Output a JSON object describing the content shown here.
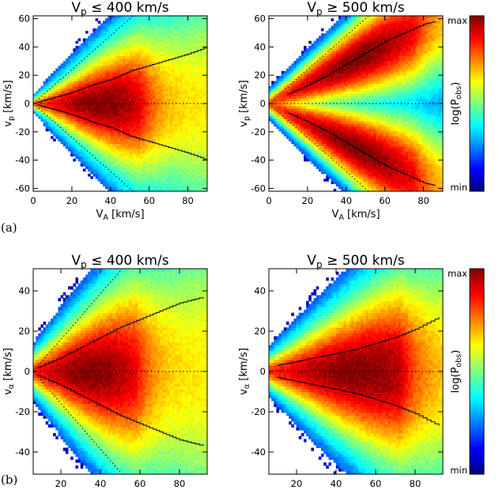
{
  "figure": {
    "rows": [
      {
        "label": "(a)"
      },
      {
        "label": "(b)"
      }
    ]
  },
  "colorbar": {
    "max_label": "max",
    "min_label": "min",
    "title": "log(P",
    "title_sub": "obs",
    "title_end": ")",
    "colors": [
      "#00007f",
      "#0000ff",
      "#0080ff",
      "#00ffff",
      "#7fff7f",
      "#ffff00",
      "#ff8000",
      "#ff0000",
      "#7f0000"
    ]
  },
  "chart_data": [
    {
      "type": "heatmap",
      "panel": "a-left",
      "title_main": "V",
      "title_sub": "p",
      "title_rest": " ≤ 400 km/s",
      "xlabel_main": "V",
      "xlabel_sub": "A",
      "xlabel_rest": " [km/s]",
      "ylabel_main": "v",
      "ylabel_sub": "p",
      "ylabel_rest": " [km/s]",
      "xlim": [
        0,
        90
      ],
      "ylim": [
        -62,
        62
      ],
      "xticks": [
        0,
        20,
        40,
        60,
        80
      ],
      "yticks": [
        -60,
        -40,
        -20,
        0,
        20,
        40,
        60
      ],
      "mode": "center",
      "spread_slope": 0.5,
      "peak_x": 35,
      "cutoff_x": 55,
      "boundary_slope": 1.2,
      "median_curve": {
        "x": [
          2,
          10,
          20,
          30,
          40,
          50,
          60,
          70,
          80,
          90
        ],
        "y": [
          1,
          4,
          8,
          13,
          17,
          23,
          27,
          31,
          35,
          40
        ]
      },
      "diagonal_slope": 1.2
    },
    {
      "type": "heatmap",
      "panel": "a-right",
      "title_main": "V",
      "title_sub": "p",
      "title_rest": " ≥ 500 km/s",
      "xlabel_main": "V",
      "xlabel_sub": "A",
      "xlabel_rest": " [km/s]",
      "ylabel_main": "v",
      "ylabel_sub": "p",
      "ylabel_rest": " [km/s]",
      "xlim": [
        0,
        90
      ],
      "ylim": [
        -62,
        62
      ],
      "xticks": [
        0,
        20,
        40,
        60,
        80
      ],
      "yticks": [
        -60,
        -40,
        -20,
        0,
        20,
        40,
        60
      ],
      "mode": "split",
      "spread_slope": 0.55,
      "peak_x": 45,
      "cutoff_x": 75,
      "boundary_slope": 1.2,
      "median_curve": {
        "x": [
          10,
          20,
          30,
          40,
          50,
          60,
          70,
          80,
          86
        ],
        "y": [
          7,
          13,
          20,
          28,
          36,
          44,
          50,
          56,
          58
        ]
      },
      "diagonal_slope": 1.2
    },
    {
      "type": "heatmap",
      "panel": "b-left",
      "title_main": "V",
      "title_sub": "p",
      "title_rest": " ≤ 400 km/s",
      "xlabel_main": "V",
      "xlabel_sub": "A",
      "xlabel_rest": " [km/s]",
      "ylabel_main": "v",
      "ylabel_sub": "α",
      "ylabel_rest": " [km/s]",
      "xlim": [
        6,
        94
      ],
      "ylim": [
        -51,
        51
      ],
      "xticks": [
        20,
        40,
        60,
        80
      ],
      "yticks": [
        -40,
        -20,
        0,
        20,
        40
      ],
      "mode": "center",
      "spread_slope": 0.45,
      "peak_x": 35,
      "cutoff_x": 58,
      "boundary_slope": 1.0,
      "median_curve": {
        "x": [
          8,
          20,
          30,
          40,
          50,
          60,
          70,
          80,
          92
        ],
        "y": [
          2,
          7,
          12,
          17,
          22,
          26,
          30,
          34,
          37
        ]
      },
      "diagonal_slope": 1.0
    },
    {
      "type": "heatmap",
      "panel": "b-right",
      "title_main": "V",
      "title_sub": "p",
      "title_rest": " ≥ 500 km/s",
      "xlabel_main": "V",
      "xlabel_sub": "A",
      "xlabel_rest": " [km/s]",
      "ylabel_main": "v",
      "ylabel_sub": "α",
      "ylabel_rest": " [km/s]",
      "xlim": [
        6,
        94
      ],
      "ylim": [
        -51,
        51
      ],
      "xticks": [
        20,
        40,
        60,
        80
      ],
      "yticks": [
        -40,
        -20,
        0,
        20,
        40
      ],
      "mode": "center",
      "spread_slope": 0.35,
      "peak_x": 50,
      "cutoff_x": 72,
      "boundary_slope": 0.8,
      "median_curve": {
        "x": [
          10,
          20,
          30,
          40,
          50,
          60,
          70,
          80,
          92
        ],
        "y": [
          3,
          5,
          7,
          9,
          11,
          14,
          17,
          21,
          27
        ]
      },
      "diagonal_slope": null
    }
  ]
}
